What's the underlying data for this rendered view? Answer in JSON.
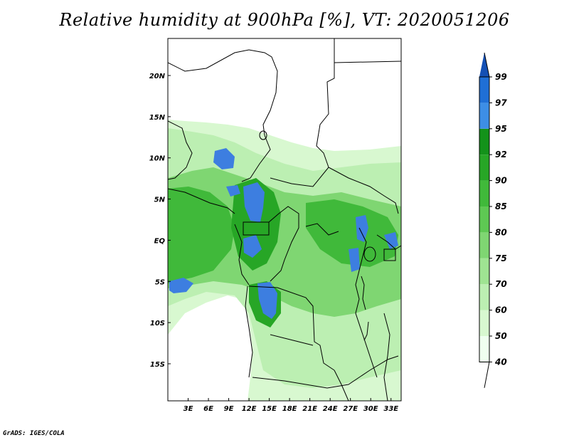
{
  "title": "Relative humidity at 900hPa [%], VT: 2020051206",
  "credit": "GrADS: IGES/COLA",
  "map": {
    "lon_range": [
      0,
      34.5
    ],
    "lat_range": [
      -19.5,
      24.5
    ],
    "lon_ticks": [
      {
        "value": 3,
        "label": "3E"
      },
      {
        "value": 6,
        "label": "6E"
      },
      {
        "value": 9,
        "label": "9E"
      },
      {
        "value": 12,
        "label": "12E"
      },
      {
        "value": 15,
        "label": "15E"
      },
      {
        "value": 18,
        "label": "18E"
      },
      {
        "value": 21,
        "label": "21E"
      },
      {
        "value": 24,
        "label": "24E"
      },
      {
        "value": 27,
        "label": "27E"
      },
      {
        "value": 30,
        "label": "30E"
      },
      {
        "value": 33,
        "label": "33E"
      }
    ],
    "lat_ticks": [
      {
        "value": 20,
        "label": "20N"
      },
      {
        "value": 15,
        "label": "15N"
      },
      {
        "value": 10,
        "label": "10N"
      },
      {
        "value": 5,
        "label": "5N"
      },
      {
        "value": 0,
        "label": "EQ"
      },
      {
        "value": -5,
        "label": "5S"
      },
      {
        "value": -10,
        "label": "10S"
      },
      {
        "value": -15,
        "label": "15S"
      }
    ]
  },
  "colorbar": {
    "levels": [
      {
        "label": "40",
        "color": "#f0fff0"
      },
      {
        "label": "50",
        "color": "#d8f8d0"
      },
      {
        "label": "60",
        "color": "#bcefb2"
      },
      {
        "label": "70",
        "color": "#9fe492"
      },
      {
        "label": "75",
        "color": "#7fd672"
      },
      {
        "label": "80",
        "color": "#5ec853"
      },
      {
        "label": "85",
        "color": "#40b93a"
      },
      {
        "label": "90",
        "color": "#27a626"
      },
      {
        "label": "92",
        "color": "#13921a"
      },
      {
        "label": "95",
        "color": "#3d8ee6"
      },
      {
        "label": "97",
        "color": "#1f6fd6"
      },
      {
        "label": "99",
        "color": "#1450b4"
      }
    ]
  },
  "colors": {
    "land_base": "#d8f8d0",
    "dry": "#ffffff",
    "mid_green": "#5ec853",
    "dark_green": "#27a626",
    "blue": "#3d7ee0",
    "border": "#000000"
  }
}
